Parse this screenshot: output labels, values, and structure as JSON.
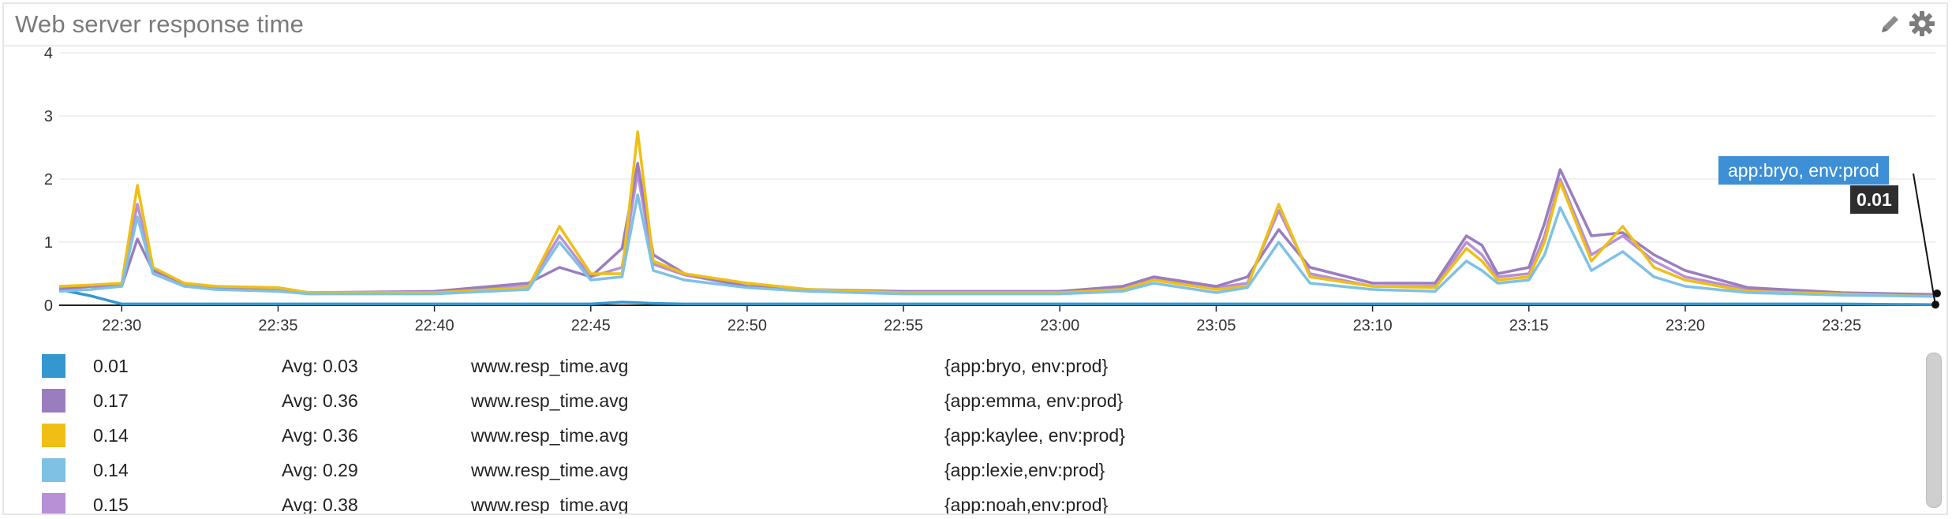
{
  "widget": {
    "title": "Web server response time"
  },
  "chart_data": {
    "type": "line",
    "ylim": [
      0,
      4
    ],
    "yticks": [
      "0",
      "1",
      "2",
      "3",
      "4"
    ],
    "xticks": [
      "22:30",
      "22:35",
      "22:40",
      "22:45",
      "22:50",
      "22:55",
      "23:00",
      "23:05",
      "23:10",
      "23:15",
      "23:20",
      "23:25"
    ],
    "x": [
      "22:28",
      "22:29",
      "22:30",
      "22:30:30",
      "22:31",
      "22:32",
      "22:33",
      "22:35",
      "22:36",
      "22:40",
      "22:43",
      "22:44",
      "22:45",
      "22:46",
      "22:46:30",
      "22:47",
      "22:48",
      "22:50",
      "22:52",
      "22:55",
      "23:00",
      "23:02",
      "23:03",
      "23:05",
      "23:06",
      "23:07",
      "23:08",
      "23:10",
      "23:12",
      "23:13",
      "23:13:30",
      "23:14",
      "23:15",
      "23:15:30",
      "23:16",
      "23:17",
      "23:18",
      "23:19",
      "23:20",
      "23:22",
      "23:25",
      "23:28"
    ],
    "series": [
      {
        "name": "{app:bryo, env:prod}",
        "color": "#3597cf",
        "values": [
          0.25,
          0.15,
          0.02,
          0.02,
          0.02,
          0.02,
          0.02,
          0.02,
          0.02,
          0.02,
          0.02,
          0.02,
          0.02,
          0.05,
          0.04,
          0.03,
          0.02,
          0.02,
          0.02,
          0.02,
          0.02,
          0.02,
          0.02,
          0.02,
          0.02,
          0.02,
          0.02,
          0.02,
          0.02,
          0.02,
          0.02,
          0.02,
          0.02,
          0.02,
          0.02,
          0.02,
          0.02,
          0.02,
          0.02,
          0.02,
          0.02,
          0.01
        ]
      },
      {
        "name": "{app:emma, env:prod}",
        "color": "#9a7dbf",
        "values": [
          0.25,
          0.3,
          0.3,
          1.05,
          0.55,
          0.35,
          0.28,
          0.22,
          0.2,
          0.22,
          0.35,
          0.6,
          0.45,
          0.9,
          2.25,
          0.8,
          0.5,
          0.3,
          0.25,
          0.22,
          0.22,
          0.3,
          0.45,
          0.3,
          0.45,
          1.2,
          0.6,
          0.35,
          0.35,
          1.1,
          0.95,
          0.5,
          0.6,
          1.3,
          2.15,
          1.1,
          1.15,
          0.8,
          0.55,
          0.28,
          0.2,
          0.17
        ]
      },
      {
        "name": "{app:kaylee, env:prod}",
        "color": "#efbf16",
        "values": [
          0.3,
          0.32,
          0.35,
          1.9,
          0.6,
          0.35,
          0.3,
          0.28,
          0.2,
          0.2,
          0.28,
          1.25,
          0.5,
          0.5,
          2.75,
          0.7,
          0.5,
          0.35,
          0.25,
          0.2,
          0.2,
          0.25,
          0.4,
          0.25,
          0.3,
          1.6,
          0.45,
          0.3,
          0.28,
          0.9,
          0.7,
          0.4,
          0.45,
          1.0,
          1.95,
          0.7,
          1.25,
          0.6,
          0.4,
          0.22,
          0.18,
          0.14
        ]
      },
      {
        "name": "{app:lexie,env:prod}",
        "color": "#7ec1e5",
        "values": [
          0.22,
          0.25,
          0.3,
          1.4,
          0.5,
          0.3,
          0.25,
          0.22,
          0.18,
          0.18,
          0.25,
          1.0,
          0.4,
          0.45,
          1.75,
          0.55,
          0.4,
          0.28,
          0.22,
          0.18,
          0.18,
          0.22,
          0.35,
          0.2,
          0.28,
          1.0,
          0.35,
          0.25,
          0.22,
          0.7,
          0.55,
          0.35,
          0.4,
          0.8,
          1.55,
          0.55,
          0.85,
          0.45,
          0.3,
          0.2,
          0.16,
          0.14
        ]
      },
      {
        "name": "{app:noah,env:prod}",
        "color": "#b790d6",
        "values": [
          0.27,
          0.3,
          0.32,
          1.6,
          0.58,
          0.33,
          0.28,
          0.24,
          0.2,
          0.2,
          0.3,
          1.1,
          0.45,
          0.6,
          2.1,
          0.65,
          0.48,
          0.3,
          0.24,
          0.2,
          0.2,
          0.26,
          0.42,
          0.28,
          0.35,
          1.5,
          0.5,
          0.3,
          0.3,
          1.0,
          0.8,
          0.45,
          0.5,
          1.1,
          2.0,
          0.8,
          1.1,
          0.7,
          0.45,
          0.25,
          0.18,
          0.15
        ]
      }
    ]
  },
  "legend": [
    {
      "value": "0.01",
      "avg": "Avg: 0.03",
      "metric": "www.resp_time.avg",
      "tags": "{app:bryo, env:prod}",
      "color": "#3597cf"
    },
    {
      "value": "0.17",
      "avg": "Avg: 0.36",
      "metric": "www.resp_time.avg",
      "tags": "{app:emma, env:prod}",
      "color": "#9a7dbf"
    },
    {
      "value": "0.14",
      "avg": "Avg: 0.36",
      "metric": "www.resp_time.avg",
      "tags": "{app:kaylee, env:prod}",
      "color": "#efbf16"
    },
    {
      "value": "0.14",
      "avg": "Avg: 0.29",
      "metric": "www.resp_time.avg",
      "tags": "{app:lexie,env:prod}",
      "color": "#7ec1e5"
    },
    {
      "value": "0.15",
      "avg": "Avg: 0.38",
      "metric": "www.resp_time.avg",
      "tags": "{app:noah,env:prod}",
      "color": "#b790d6"
    }
  ],
  "tooltip": {
    "label": "app:bryo, env:prod",
    "value": "0.01"
  },
  "icons": {
    "edit": "pencil-icon",
    "settings": "gear-icon"
  }
}
